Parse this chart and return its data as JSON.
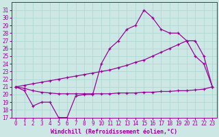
{
  "xlabel": "Windchill (Refroidissement éolien,°C)",
  "bg_color": "#cde8e4",
  "grid_color": "#b0d8d4",
  "line_color": "#990099",
  "xlim": [
    -0.5,
    23.5
  ],
  "ylim": [
    17,
    32
  ],
  "xticks": [
    0,
    1,
    2,
    3,
    4,
    5,
    6,
    7,
    8,
    9,
    10,
    11,
    12,
    13,
    14,
    15,
    16,
    17,
    18,
    19,
    20,
    21,
    22,
    23
  ],
  "yticks": [
    17,
    18,
    19,
    20,
    21,
    22,
    23,
    24,
    25,
    26,
    27,
    28,
    29,
    30,
    31
  ],
  "line1_x": [
    0,
    1,
    2,
    3,
    4,
    5,
    6,
    7,
    8,
    9,
    10,
    11,
    12,
    13,
    14,
    15,
    16,
    17,
    18,
    19,
    20,
    21,
    22,
    23
  ],
  "line1_y": [
    21.0,
    20.5,
    18.5,
    19.0,
    19.0,
    17.0,
    17.0,
    19.8,
    20.0,
    20.0,
    24.0,
    26.0,
    27.0,
    28.5,
    29.0,
    31.0,
    30.0,
    28.5,
    28.0,
    28.0,
    27.0,
    25.0,
    24.0,
    21.0
  ],
  "line2_x": [
    0,
    1,
    2,
    3,
    4,
    5,
    6,
    7,
    8,
    9,
    10,
    11,
    12,
    13,
    14,
    15,
    16,
    17,
    18,
    19,
    20,
    21,
    22,
    23
  ],
  "line2_y": [
    21.0,
    20.8,
    20.5,
    20.3,
    20.2,
    20.1,
    20.1,
    20.1,
    20.1,
    20.1,
    20.1,
    20.1,
    20.2,
    20.2,
    20.2,
    20.3,
    20.3,
    20.4,
    20.4,
    20.5,
    20.5,
    20.6,
    20.7,
    21.0
  ],
  "line3_x": [
    0,
    1,
    2,
    3,
    4,
    5,
    6,
    7,
    8,
    9,
    10,
    11,
    12,
    13,
    14,
    15,
    16,
    17,
    18,
    19,
    20,
    21,
    22,
    23
  ],
  "line3_y": [
    21.0,
    21.2,
    21.4,
    21.6,
    21.8,
    22.0,
    22.2,
    22.4,
    22.6,
    22.8,
    23.0,
    23.2,
    23.5,
    23.8,
    24.2,
    24.5,
    25.0,
    25.5,
    26.0,
    26.5,
    27.0,
    27.0,
    25.0,
    21.0
  ],
  "tick_fontsize": 5.5,
  "xlabel_fontsize": 6.0
}
